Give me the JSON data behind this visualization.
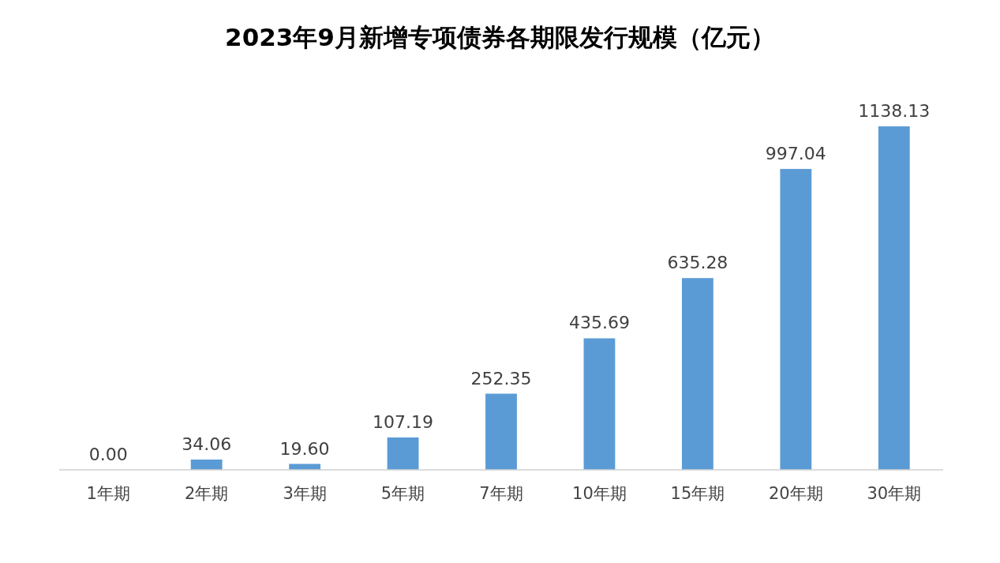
{
  "chart_data": {
    "type": "bar",
    "title": "2023年9月新增专项债券各期限发行规模（亿元）",
    "categories": [
      "1年期",
      "2年期",
      "3年期",
      "5年期",
      "7年期",
      "10年期",
      "15年期",
      "20年期",
      "30年期"
    ],
    "values": [
      0.0,
      34.06,
      19.6,
      107.19,
      252.35,
      435.69,
      635.28,
      997.04,
      1138.13
    ],
    "value_labels": [
      "0.00",
      "34.06",
      "19.60",
      "107.19",
      "252.35",
      "435.69",
      "635.28",
      "997.04",
      "1138.13"
    ],
    "color": "#5b9bd5",
    "data_labels": true
  }
}
